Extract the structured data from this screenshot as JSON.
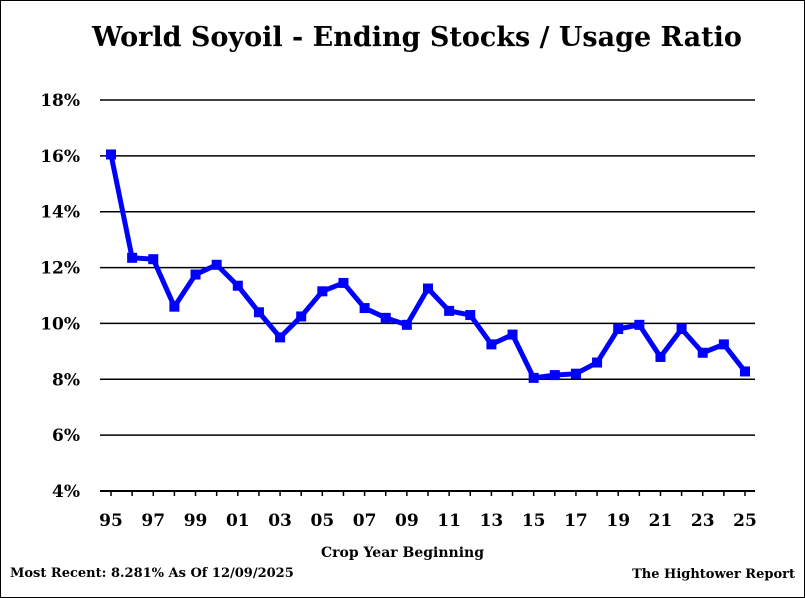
{
  "chart_data": {
    "type": "line",
    "title": "World Soyoil - Ending Stocks / Usage Ratio",
    "xlabel": "Crop Year Beginning",
    "ylabel": "",
    "ylim": [
      4,
      18
    ],
    "y_ticks": [
      4,
      6,
      8,
      10,
      12,
      14,
      16,
      18
    ],
    "y_tick_labels": [
      "4%",
      "6%",
      "8%",
      "10%",
      "12%",
      "14%",
      "16%",
      "18%"
    ],
    "x_tick_labels": [
      "95",
      "97",
      "99",
      "01",
      "03",
      "05",
      "07",
      "09",
      "11",
      "13",
      "15",
      "17",
      "19",
      "21",
      "23",
      "25"
    ],
    "categories": [
      "95",
      "96",
      "97",
      "98",
      "99",
      "00",
      "01",
      "02",
      "03",
      "04",
      "05",
      "06",
      "07",
      "08",
      "09",
      "10",
      "11",
      "12",
      "13",
      "14",
      "15",
      "16",
      "17",
      "18",
      "19",
      "20",
      "21",
      "22",
      "23",
      "24",
      "25"
    ],
    "series": [
      {
        "values": [
          16.05,
          12.35,
          12.3,
          10.6,
          11.75,
          12.1,
          11.35,
          10.4,
          9.5,
          10.25,
          11.15,
          11.45,
          10.55,
          10.2,
          9.95,
          11.25,
          10.45,
          10.3,
          9.25,
          9.6,
          8.05,
          8.15,
          8.2,
          8.6,
          9.8,
          9.95,
          8.8,
          9.8,
          8.95,
          9.25,
          8.28
        ]
      }
    ],
    "grid": true,
    "line_color": "#0000ff",
    "grid_color": "#000000"
  },
  "footer": {
    "left": "Most Recent: 8.281% As Of 12/09/2025",
    "right": "The Hightower Report"
  }
}
